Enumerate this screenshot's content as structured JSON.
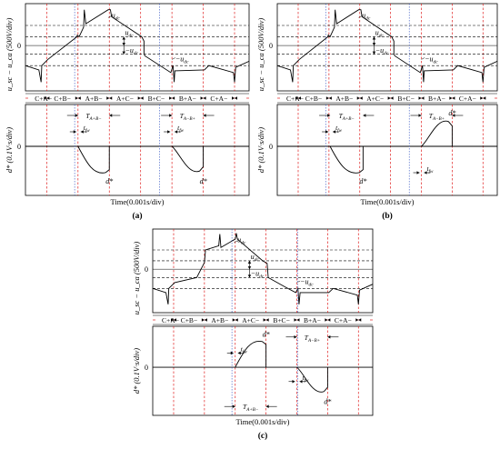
{
  "panels": [
    {
      "id": "a",
      "label": "(a)",
      "y_label_top": "u_sc − u_ca (500V/div)",
      "y_label_bottom": "d* (0.1V·s/div)",
      "x_label": "Time(0.001s/div)",
      "zero_label": "0",
      "sectors": [
        "C+A−",
        "C+B−",
        "A+B−",
        "A+C−",
        "B+C−",
        "B+A−",
        "C+A−"
      ],
      "ann": {
        "udc_top": "u_dc",
        "udc_mid": "u_dc",
        "neg_udc_mid": "−u_dc",
        "neg_udc_right": "−u_dc",
        "T_left": "T_A+B−",
        "T_right": "T_A−B+",
        "tfw_left": "t_fw",
        "tfw_right": "t_fw",
        "dstar_left": "d*",
        "dstar_right": "d*"
      }
    },
    {
      "id": "b",
      "label": "(b)",
      "y_label_top": "u_sc − u_ca (500V/div)",
      "y_label_bottom": "d* (0.1V·s/div)",
      "x_label": "Time(0.001s/div)",
      "zero_label": "0",
      "sectors": [
        "C+A−",
        "C+B−",
        "A+B−",
        "A+C−",
        "B+C−",
        "B+A−",
        "C+A−"
      ],
      "ann": {
        "udc_top": "u_dc",
        "udc_mid": "u_dc",
        "neg_udc_mid": "−u_dc",
        "neg_udc_right": "−u_dc",
        "T_left": "T_A+B−",
        "T_right": "T_A−B+",
        "tfw_left": "t_fw",
        "tfw_right": "t_fw",
        "dstar_left": "d*",
        "dstar_right": "d*"
      }
    },
    {
      "id": "c",
      "label": "(c)",
      "y_label_top": "u_sc − u_ca (500V/div)",
      "y_label_bottom": "d* (0.1V·s/div)",
      "x_label": "Time(0.001s/div)",
      "zero_label": "0",
      "sectors": [
        "C+A−",
        "C+B−",
        "A+B−",
        "A+C−",
        "B+C−",
        "B+A−",
        "C+A−"
      ],
      "ann": {
        "udc_top": "u_dc",
        "udc_mid": "u_dc",
        "neg_udc_mid": "−u_dc",
        "neg_udc_right": "−u_dc",
        "T_top": "T_A−B+",
        "T_bottom": "T_A+B−",
        "tfw_left": "t_fw",
        "tfw_right": "t_fw",
        "dstar_left": "d*",
        "dstar_right": "d*"
      }
    }
  ]
}
